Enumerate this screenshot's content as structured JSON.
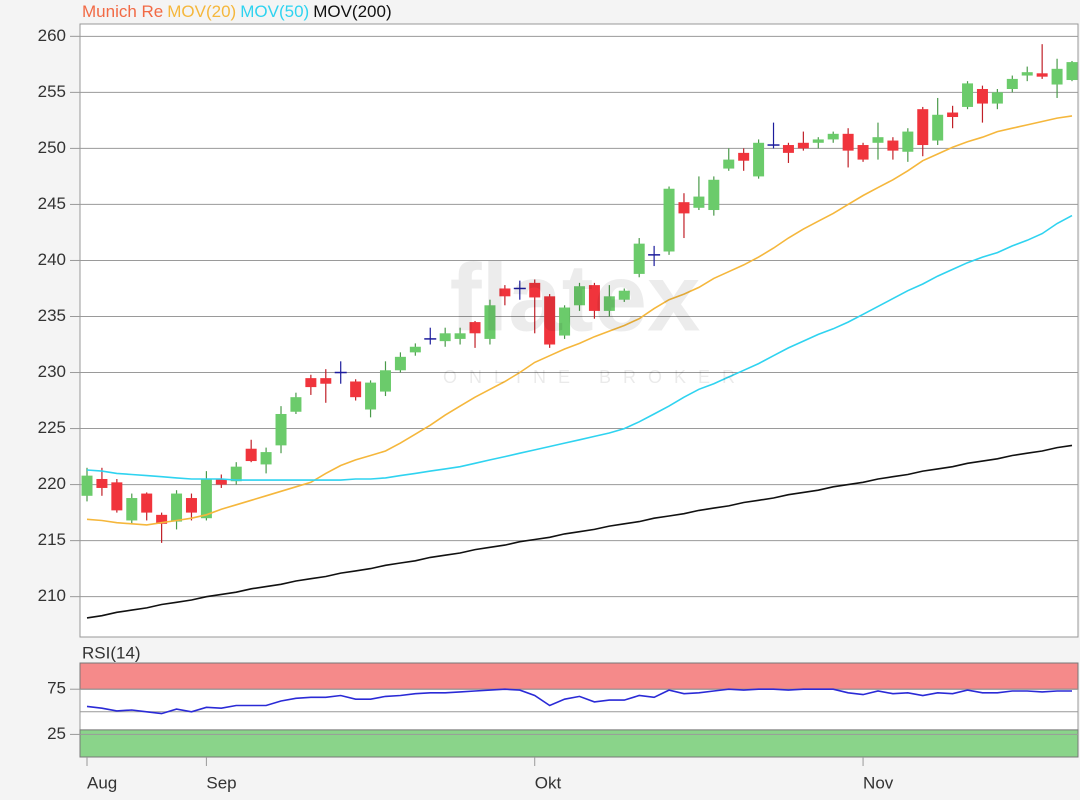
{
  "chart_data": [
    {
      "type": "candlestick",
      "title": "Munich Re",
      "title_color": "#f26a45",
      "watermark": "flatex",
      "watermark_sub": "ONLINE BROKER",
      "categories": [
        "Aug",
        null,
        null,
        null,
        null,
        null,
        null,
        null,
        "Sep",
        null,
        null,
        null,
        null,
        null,
        null,
        null,
        null,
        null,
        null,
        null,
        null,
        null,
        null,
        null,
        null,
        null,
        null,
        null,
        null,
        null,
        "Okt",
        null,
        null,
        null,
        null,
        null,
        null,
        null,
        null,
        null,
        null,
        null,
        null,
        null,
        null,
        null,
        null,
        null,
        null,
        null,
        null,
        null,
        "Nov",
        null,
        null,
        null,
        null,
        null,
        null,
        null,
        null,
        null,
        null,
        null,
        null,
        null,
        null
      ],
      "open": [
        219,
        220.5,
        220.2,
        216.8,
        219.2,
        217.3,
        216.7,
        218.8,
        217,
        220.5,
        220.3,
        223.2,
        221.8,
        223.5,
        226.5,
        229.5,
        229.5,
        230,
        229.2,
        226.7,
        228.3,
        230.2,
        231.8,
        233,
        232.8,
        233,
        234.5,
        233,
        237.5,
        237.5,
        238,
        236.8,
        233.3,
        236,
        237.8,
        235.5,
        236.5,
        238.8,
        240.5,
        240.8,
        245.2,
        244.7,
        244.5,
        248.2,
        249.6,
        247.5,
        250.3,
        250.3,
        250.5,
        250.5,
        250.8,
        251.3,
        250.3,
        250.5,
        250.7,
        249.7,
        253.5,
        250.7,
        253.2,
        253.7,
        255.3,
        254,
        255.3,
        256.5,
        256.7,
        255.7,
        256.1
      ],
      "high": [
        221.5,
        221.5,
        220.5,
        219.2,
        219.3,
        217.5,
        219.5,
        219.2,
        221.2,
        220.9,
        222,
        224,
        223.3,
        227,
        228.2,
        229.8,
        230.3,
        231,
        229.4,
        229.3,
        231,
        231.8,
        232.6,
        234,
        234,
        234,
        234.6,
        236.5,
        237.8,
        238.2,
        238.3,
        237,
        236,
        238,
        238,
        237.8,
        237.5,
        242,
        241.3,
        246.6,
        246,
        247.5,
        247.5,
        250,
        250,
        250.8,
        252.3,
        250.5,
        251.5,
        251,
        251.5,
        251.8,
        250.5,
        252.3,
        251,
        251.8,
        253.7,
        254.5,
        253.8,
        256,
        255.6,
        255.3,
        256.5,
        257.3,
        259.3,
        258,
        257.8
      ],
      "low": [
        218.5,
        219,
        217.5,
        216.5,
        216.8,
        214.8,
        216,
        216.8,
        216.8,
        219.7,
        220,
        222,
        221,
        222.8,
        226.3,
        228,
        227.3,
        229,
        227.5,
        226,
        227.9,
        230,
        231.5,
        232.5,
        232.3,
        232.5,
        232.2,
        232.5,
        236,
        236.5,
        233.5,
        232.2,
        233,
        235.5,
        234.8,
        235,
        236.3,
        238.5,
        239.5,
        240.5,
        242,
        244.5,
        244,
        248,
        248,
        247.3,
        250,
        248.7,
        249.8,
        250,
        250.5,
        248.3,
        248.8,
        249,
        249,
        248.8,
        249.3,
        250.3,
        251.8,
        253.5,
        252.3,
        253.5,
        255,
        256,
        256.2,
        254.5,
        256
      ],
      "close": [
        220.8,
        219.7,
        217.7,
        218.8,
        217.5,
        216.5,
        219.2,
        217.5,
        220.5,
        220,
        221.6,
        222.1,
        222.9,
        226.3,
        227.8,
        228.7,
        229,
        230,
        227.8,
        229.1,
        230.2,
        231.4,
        232.3,
        233,
        233.5,
        233.5,
        233.5,
        236,
        236.8,
        237.5,
        236.7,
        232.5,
        235.8,
        237.7,
        235.5,
        236.8,
        237.3,
        241.5,
        240.5,
        246.4,
        244.2,
        245.7,
        247.2,
        249,
        248.9,
        250.5,
        250.3,
        249.6,
        250,
        250.8,
        251.3,
        249.8,
        249,
        251,
        249.8,
        251.5,
        250.3,
        253,
        252.8,
        255.8,
        254,
        255,
        256.2,
        256.8,
        256.4,
        257.1,
        257.7
      ],
      "up_color": "#6bcb6b",
      "down_color": "#f0343c",
      "doji_color": "#1c1c9c",
      "series": [
        {
          "name": "MOV(20)",
          "color": "#f5b73c",
          "values": [
            216.9,
            216.8,
            216.6,
            216.5,
            216.4,
            216.6,
            216.8,
            217.0,
            217.3,
            217.8,
            218.2,
            218.6,
            219.0,
            219.4,
            219.8,
            220.2,
            221.0,
            221.7,
            222.2,
            222.6,
            223.0,
            223.7,
            224.5,
            225.3,
            226.2,
            227.0,
            227.8,
            228.5,
            229.2,
            230.0,
            230.9,
            231.5,
            232.1,
            232.6,
            233.2,
            233.7,
            234.2,
            234.8,
            235.7,
            236.5,
            237.0,
            237.6,
            238.4,
            239.0,
            239.6,
            240.3,
            241.1,
            242.0,
            242.8,
            243.5,
            244.2,
            245.0,
            245.8,
            246.5,
            247.2,
            248.0,
            248.9,
            249.5,
            250.1,
            250.6,
            251.0,
            251.5,
            251.8,
            252.1,
            252.4,
            252.7,
            252.9
          ]
        },
        {
          "name": "MOV(50)",
          "color": "#2fd3f0",
          "values": [
            221.3,
            221.2,
            221.0,
            220.9,
            220.8,
            220.7,
            220.6,
            220.5,
            220.5,
            220.5,
            220.4,
            220.4,
            220.4,
            220.4,
            220.4,
            220.4,
            220.4,
            220.4,
            220.5,
            220.5,
            220.6,
            220.8,
            221.0,
            221.2,
            221.4,
            221.6,
            221.9,
            222.2,
            222.5,
            222.8,
            223.1,
            223.4,
            223.7,
            224.0,
            224.3,
            224.6,
            225.0,
            225.6,
            226.3,
            227.0,
            227.8,
            228.5,
            229.0,
            229.6,
            230.2,
            230.8,
            231.5,
            232.2,
            232.8,
            233.4,
            233.9,
            234.5,
            235.2,
            235.9,
            236.6,
            237.3,
            237.9,
            238.6,
            239.2,
            239.8,
            240.3,
            240.7,
            241.3,
            241.8,
            242.4,
            243.3,
            244.0
          ]
        },
        {
          "name": "MOV(200)",
          "color": "#111111",
          "values": [
            208.1,
            208.3,
            208.6,
            208.8,
            209.0,
            209.3,
            209.5,
            209.7,
            210.0,
            210.2,
            210.4,
            210.7,
            210.9,
            211.1,
            211.4,
            211.6,
            211.8,
            212.1,
            212.3,
            212.5,
            212.8,
            213.0,
            213.2,
            213.5,
            213.7,
            213.9,
            214.2,
            214.4,
            214.6,
            214.9,
            215.1,
            215.3,
            215.6,
            215.8,
            216.0,
            216.3,
            216.5,
            216.7,
            217.0,
            217.2,
            217.4,
            217.7,
            217.9,
            218.1,
            218.4,
            218.6,
            218.8,
            219.1,
            219.3,
            219.5,
            219.8,
            220.0,
            220.2,
            220.5,
            220.7,
            220.9,
            221.2,
            221.4,
            221.6,
            221.9,
            222.1,
            222.3,
            222.6,
            222.8,
            223.0,
            223.3,
            223.5
          ]
        }
      ],
      "ylim": [
        206.4,
        261.1
      ],
      "yticks": [
        210,
        215,
        220,
        225,
        230,
        235,
        240,
        245,
        250,
        255,
        260
      ],
      "grid": true
    },
    {
      "type": "line",
      "title": "RSI(14)",
      "title_color": "#1c1c9c",
      "series": [
        {
          "name": "RSI(14)",
          "color": "#2a2ad6",
          "values": [
            56,
            54,
            51,
            52,
            50,
            48,
            53,
            50,
            55,
            54,
            57,
            57,
            57,
            62,
            65,
            66,
            66,
            68,
            64,
            64,
            67,
            68,
            70,
            71,
            71,
            72,
            73,
            74,
            75,
            74,
            68,
            57,
            64,
            67,
            61,
            63,
            63,
            68,
            66,
            74,
            70,
            71,
            73,
            75,
            74,
            75,
            75,
            74,
            75,
            75,
            75,
            71,
            69,
            73,
            70,
            71,
            68,
            71,
            70,
            74,
            71,
            71,
            73,
            73,
            72,
            73,
            73
          ]
        }
      ],
      "ylim": [
        0,
        104
      ],
      "yticks": [
        25,
        75
      ],
      "grid": true,
      "bands": [
        {
          "from": 75,
          "to": 104,
          "color": "#f58a8a"
        },
        {
          "from": 0,
          "to": 30,
          "color": "#8ad48a"
        }
      ],
      "reference_line": 50
    }
  ]
}
